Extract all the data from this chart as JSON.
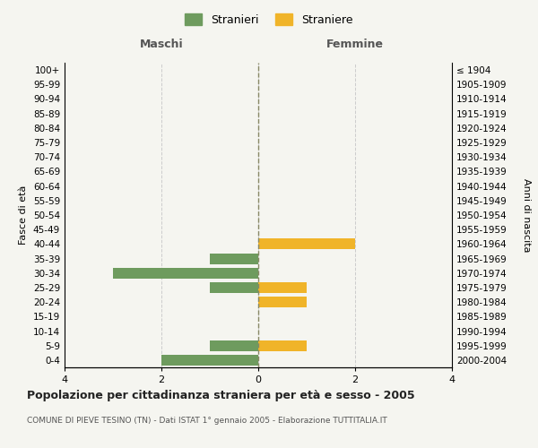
{
  "age_groups": [
    "100+",
    "95-99",
    "90-94",
    "85-89",
    "80-84",
    "75-79",
    "70-74",
    "65-69",
    "60-64",
    "55-59",
    "50-54",
    "45-49",
    "40-44",
    "35-39",
    "30-34",
    "25-29",
    "20-24",
    "15-19",
    "10-14",
    "5-9",
    "0-4"
  ],
  "birth_years": [
    "≤ 1904",
    "1905-1909",
    "1910-1914",
    "1915-1919",
    "1920-1924",
    "1925-1929",
    "1930-1934",
    "1935-1939",
    "1940-1944",
    "1945-1949",
    "1950-1954",
    "1955-1959",
    "1960-1964",
    "1965-1969",
    "1970-1974",
    "1975-1979",
    "1980-1984",
    "1985-1989",
    "1990-1994",
    "1995-1999",
    "2000-2004"
  ],
  "maschi": [
    0,
    0,
    0,
    0,
    0,
    0,
    0,
    0,
    0,
    0,
    0,
    0,
    0,
    -1,
    -3,
    -1,
    0,
    0,
    0,
    -1,
    -2
  ],
  "femmine": [
    0,
    0,
    0,
    0,
    0,
    0,
    0,
    0,
    0,
    0,
    0,
    0,
    2,
    0,
    0,
    1,
    1,
    0,
    0,
    1,
    0
  ],
  "maschi_color": "#6e9b5e",
  "femmine_color": "#f0b429",
  "bar_height": 0.75,
  "xlim": [
    -4,
    4
  ],
  "xticks": [
    -4,
    -2,
    0,
    2,
    4
  ],
  "xticklabels": [
    "4",
    "2",
    "0",
    "2",
    "4"
  ],
  "title": "Popolazione per cittadinanza straniera per età e sesso - 2005",
  "subtitle": "COMUNE DI PIEVE TESINO (TN) - Dati ISTAT 1° gennaio 2005 - Elaborazione TUTTITALIA.IT",
  "ylabel_left": "Fasce di età",
  "ylabel_right": "Anni di nascita",
  "label_maschi": "Maschi",
  "label_femmine": "Femmine",
  "legend_stranieri": "Stranieri",
  "legend_straniere": "Straniere",
  "bg_color": "#f5f5f0",
  "grid_color": "#cccccc"
}
